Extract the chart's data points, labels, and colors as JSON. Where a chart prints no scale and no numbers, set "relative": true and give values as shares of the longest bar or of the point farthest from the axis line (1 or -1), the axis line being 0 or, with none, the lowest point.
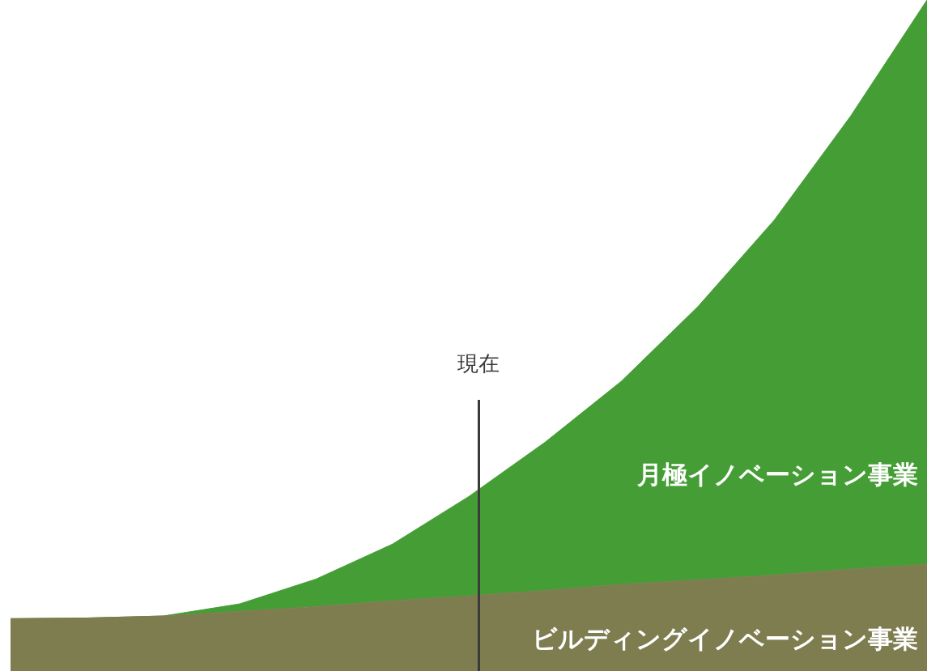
{
  "chart_data": {
    "type": "area",
    "relative": true,
    "stacked": true,
    "legend": false,
    "marker": "none",
    "categories": [
      null,
      null,
      null,
      null,
      null,
      null,
      null,
      null,
      null,
      null,
      null,
      null,
      null
    ],
    "series": [
      {
        "name": "ビルディングイノベーション事業",
        "color": "#7d7d50",
        "values": [
          0.078,
          0.079,
          0.082,
          0.089,
          0.096,
          0.105,
          0.112,
          0.12,
          0.129,
          0.136,
          0.143,
          0.152,
          0.159
        ]
      },
      {
        "name": "月極イノベーション事業",
        "color": "#459e35",
        "values": [
          0,
          0,
          0,
          0.011,
          0.041,
          0.084,
          0.148,
          0.221,
          0.303,
          0.407,
          0.529,
          0.675,
          0.841
        ]
      }
    ],
    "annotations": [
      "現在"
    ]
  }
}
